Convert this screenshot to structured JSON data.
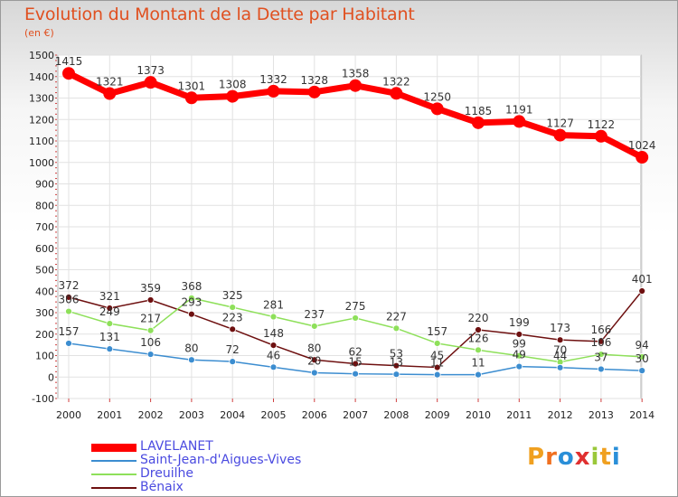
{
  "title": "Evolution du Montant de la Dette par Habitant",
  "subtitle": "(en €)",
  "logo_text": "Proxiti",
  "chart_data": {
    "type": "line",
    "title": "Evolution du Montant de la Dette par Habitant",
    "ylabel": "(en €)",
    "xlabel": "",
    "x": [
      "2000",
      "2001",
      "2002",
      "2003",
      "2004",
      "2005",
      "2006",
      "2007",
      "2008",
      "2009",
      "2010",
      "2011",
      "2012",
      "2013",
      "2014"
    ],
    "yticks": [
      -100,
      0,
      100,
      200,
      300,
      400,
      500,
      600,
      700,
      800,
      900,
      1000,
      1100,
      1200,
      1300,
      1400,
      1500
    ],
    "ylim": [
      -100,
      1500
    ],
    "grid": true,
    "legend_position": "bottom-left",
    "series": [
      {
        "name": "LAVELANET",
        "color": "#ff0000",
        "values": [
          1415,
          1321,
          1373,
          1301,
          1308,
          1332,
          1328,
          1358,
          1322,
          1250,
          1185,
          1191,
          1127,
          1122,
          1024
        ]
      },
      {
        "name": "Saint-Jean-d'Aigues-Vives",
        "color": "#3c8dd0",
        "values": [
          157,
          131,
          106,
          80,
          72,
          46,
          20,
          15,
          13,
          11,
          11,
          49,
          44,
          37,
          30
        ]
      },
      {
        "name": "Dreuilhe",
        "color": "#8ee05a",
        "values": [
          306,
          249,
          217,
          368,
          325,
          281,
          237,
          275,
          227,
          157,
          126,
          99,
          70,
          106,
          94
        ]
      },
      {
        "name": "Bénaix",
        "color": "#6e1010",
        "values": [
          372,
          321,
          359,
          293,
          223,
          148,
          80,
          62,
          53,
          45,
          220,
          199,
          173,
          166,
          401
        ]
      }
    ]
  }
}
